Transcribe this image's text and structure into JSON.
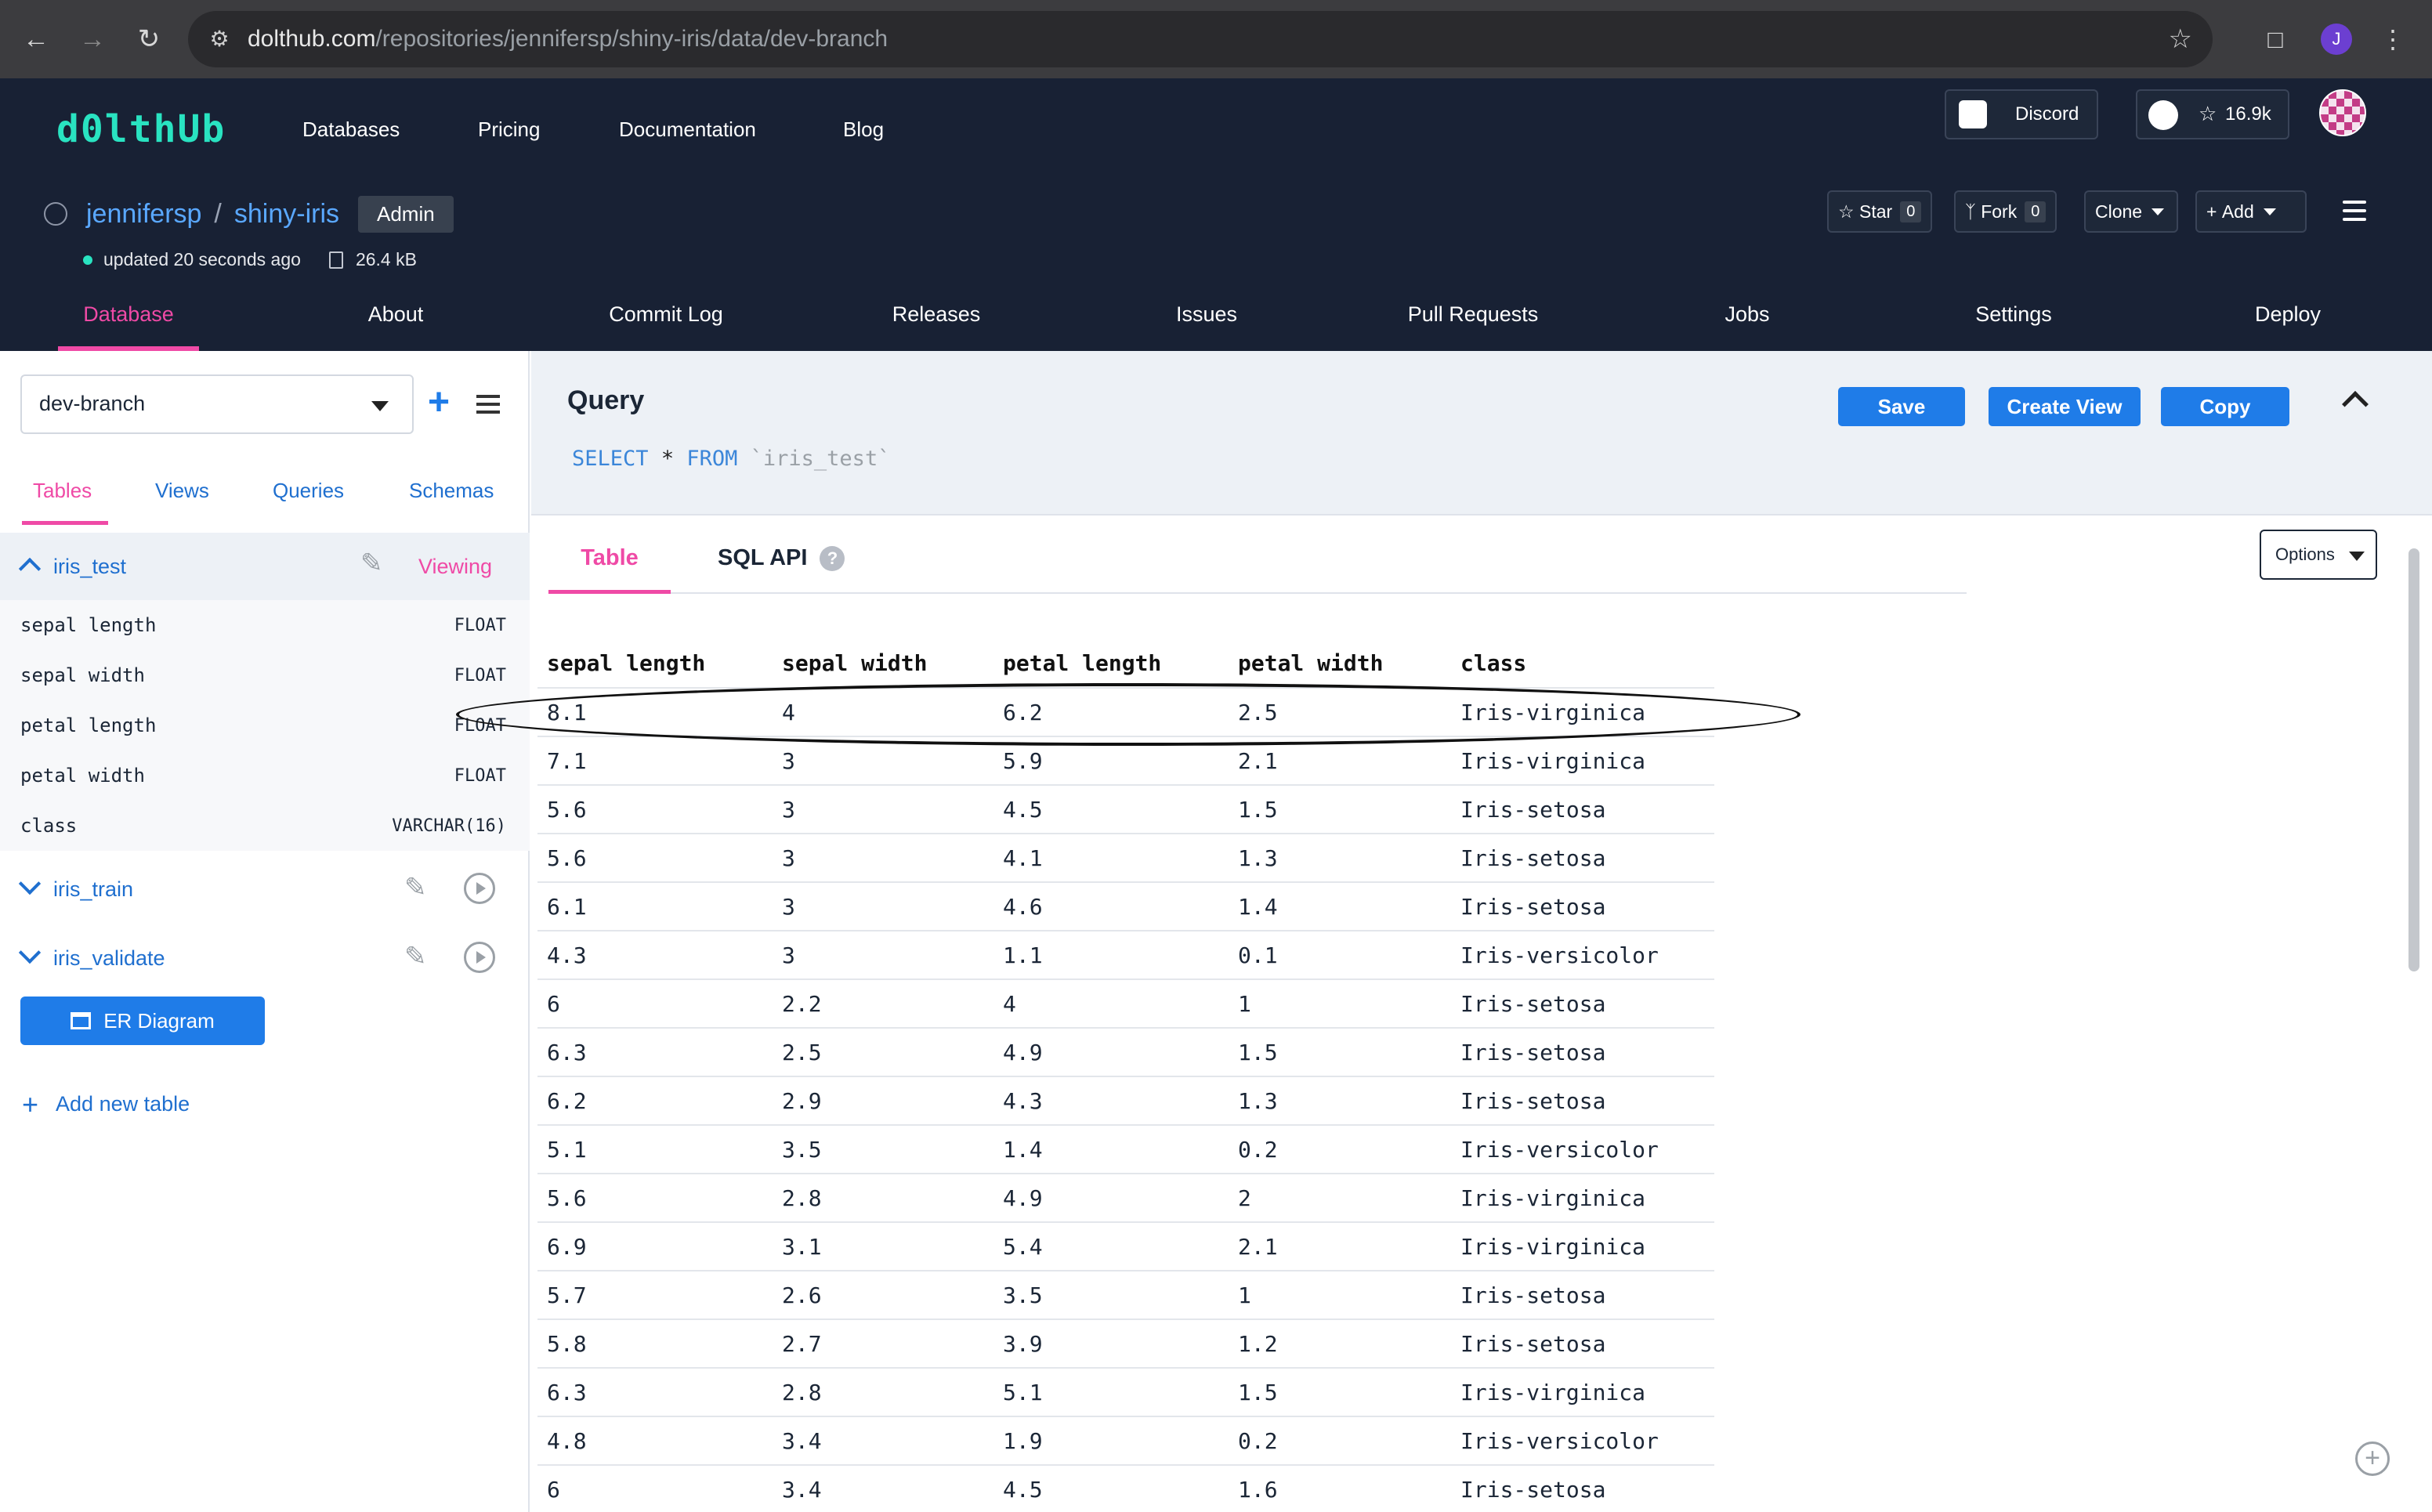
{
  "browser": {
    "url_host": "dolthub.com",
    "url_path": "/repositories/jennifersp/shiny-iris/data/dev-branch",
    "profile_initial": "J"
  },
  "site": {
    "logo": "d0lthUb",
    "nav": [
      "Databases",
      "Pricing",
      "Documentation",
      "Blog"
    ],
    "discord_label": "Discord",
    "github_stars": "16.9k"
  },
  "repo": {
    "owner": "jennifersp",
    "separator": "/",
    "name": "shiny-iris",
    "badge": "Admin",
    "updated": "updated 20 seconds ago",
    "size": "26.4 kB",
    "star_label": "Star",
    "star_count": "0",
    "fork_label": "Fork",
    "fork_count": "0",
    "clone_label": "Clone",
    "add_label": "Add",
    "tabs": [
      "Database",
      "About",
      "Commit Log",
      "Releases",
      "Issues",
      "Pull Requests",
      "Jobs",
      "Settings",
      "Deploy"
    ]
  },
  "sidebar": {
    "branch": "dev-branch",
    "tabs": [
      "Tables",
      "Views",
      "Queries",
      "Schemas"
    ],
    "active_table": "iris_test",
    "viewing_label": "Viewing",
    "columns": [
      {
        "name": "sepal length",
        "type": "FLOAT"
      },
      {
        "name": "sepal width",
        "type": "FLOAT"
      },
      {
        "name": "petal length",
        "type": "FLOAT"
      },
      {
        "name": "petal width",
        "type": "FLOAT"
      },
      {
        "name": "class",
        "type": "VARCHAR(16)"
      }
    ],
    "other_tables": [
      "iris_train",
      "iris_validate"
    ],
    "er_diagram_label": "ER Diagram",
    "add_table_label": "Add new table"
  },
  "query": {
    "title": "Query",
    "sql_select": "SELECT",
    "sql_star": "*",
    "sql_from": "FROM",
    "sql_table": "`iris_test`",
    "save_label": "Save",
    "create_view_label": "Create View",
    "copy_label": "Copy"
  },
  "results": {
    "tabs": [
      "Table",
      "SQL API"
    ],
    "help": "?",
    "options_label": "Options",
    "headers": [
      "sepal length",
      "sepal width",
      "petal length",
      "petal width",
      "class"
    ],
    "rows": [
      [
        "8.1",
        "4",
        "6.2",
        "2.5",
        "Iris-virginica"
      ],
      [
        "7.1",
        "3",
        "5.9",
        "2.1",
        "Iris-virginica"
      ],
      [
        "5.6",
        "3",
        "4.5",
        "1.5",
        "Iris-setosa"
      ],
      [
        "5.6",
        "3",
        "4.1",
        "1.3",
        "Iris-setosa"
      ],
      [
        "6.1",
        "3",
        "4.6",
        "1.4",
        "Iris-setosa"
      ],
      [
        "4.3",
        "3",
        "1.1",
        "0.1",
        "Iris-versicolor"
      ],
      [
        "6",
        "2.2",
        "4",
        "1",
        "Iris-setosa"
      ],
      [
        "6.3",
        "2.5",
        "4.9",
        "1.5",
        "Iris-setosa"
      ],
      [
        "6.2",
        "2.9",
        "4.3",
        "1.3",
        "Iris-setosa"
      ],
      [
        "5.1",
        "3.5",
        "1.4",
        "0.2",
        "Iris-versicolor"
      ],
      [
        "5.6",
        "2.8",
        "4.9",
        "2",
        "Iris-virginica"
      ],
      [
        "6.9",
        "3.1",
        "5.4",
        "2.1",
        "Iris-virginica"
      ],
      [
        "5.7",
        "2.6",
        "3.5",
        "1",
        "Iris-setosa"
      ],
      [
        "5.8",
        "2.7",
        "3.9",
        "1.2",
        "Iris-setosa"
      ],
      [
        "6.3",
        "2.8",
        "5.1",
        "1.5",
        "Iris-virginica"
      ],
      [
        "4.8",
        "3.4",
        "1.9",
        "0.2",
        "Iris-versicolor"
      ],
      [
        "6",
        "3.4",
        "4.5",
        "1.6",
        "Iris-setosa"
      ]
    ]
  },
  "colors": {
    "accent_pink": "#ef4aa6",
    "link_blue": "#1f6fcf",
    "button_blue": "#1f7ce8",
    "header_bg": "#182134",
    "logo_teal": "#29e3c1"
  }
}
